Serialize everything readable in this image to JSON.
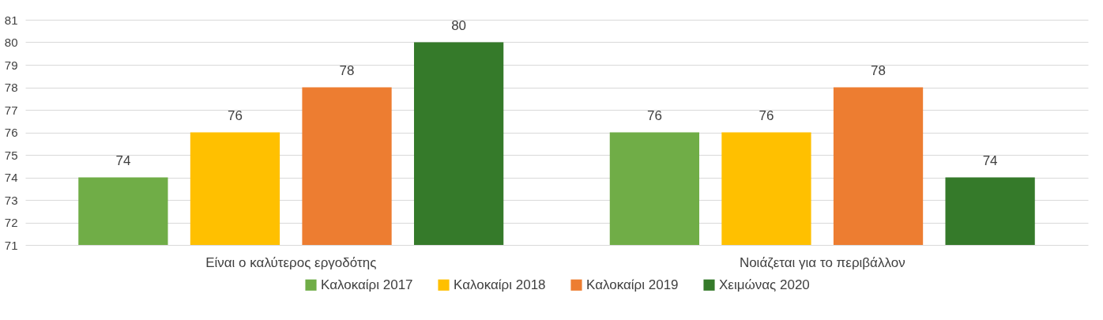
{
  "chart_data": {
    "type": "bar",
    "categories": [
      "Είναι ο καλύτερος εργοδότης",
      "Νοιάζεται για το περιβάλλον"
    ],
    "series": [
      {
        "name": "Καλοκαίρι 2017",
        "color": "#70ad47",
        "values": [
          74,
          76
        ]
      },
      {
        "name": "Καλοκαίρι 2018",
        "color": "#ffc000",
        "values": [
          76,
          76
        ]
      },
      {
        "name": "Καλοκαίρι 2019",
        "color": "#ed7d31",
        "values": [
          78,
          78
        ]
      },
      {
        "name": "Χειμώνας 2020",
        "color": "#357a2a",
        "values": [
          80,
          74
        ]
      }
    ],
    "ylim": [
      71,
      81
    ],
    "yticks": [
      71,
      72,
      73,
      74,
      75,
      76,
      77,
      78,
      79,
      80,
      81
    ],
    "grid": "y",
    "legend": "bottom",
    "data_labels": true
  }
}
